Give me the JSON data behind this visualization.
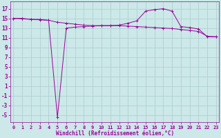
{
  "xlabel": "Windchill (Refroidissement éolien,°C)",
  "x_values": [
    0,
    1,
    2,
    3,
    4,
    5,
    6,
    7,
    8,
    9,
    10,
    11,
    12,
    13,
    14,
    15,
    16,
    17,
    18,
    19,
    20,
    21,
    22,
    23
  ],
  "line1_y": [
    15.0,
    15.0,
    14.8,
    14.8,
    14.6,
    -5.5,
    13.0,
    13.2,
    13.3,
    13.4,
    13.5,
    13.5,
    13.6,
    14.0,
    14.5,
    16.5,
    16.8,
    17.0,
    16.5,
    13.3,
    13.1,
    12.8,
    11.2,
    11.2
  ],
  "line2_y": [
    15.0,
    14.9,
    14.8,
    14.7,
    14.6,
    14.2,
    14.0,
    13.8,
    13.6,
    13.5,
    13.5,
    13.5,
    13.5,
    13.4,
    13.3,
    13.2,
    13.1,
    13.0,
    12.9,
    12.7,
    12.5,
    12.3,
    11.3,
    11.2
  ],
  "line_color": "#990099",
  "bg_color": "#cce8e8",
  "grid_color": "#aacccc",
  "ylim": [
    -6.5,
    18.5
  ],
  "yticks": [
    -5,
    -3,
    -1,
    1,
    3,
    5,
    7,
    9,
    11,
    13,
    15,
    17
  ],
  "xticks": [
    0,
    1,
    2,
    3,
    4,
    5,
    6,
    7,
    8,
    9,
    10,
    11,
    12,
    13,
    14,
    15,
    16,
    17,
    18,
    19,
    20,
    21,
    22,
    23
  ],
  "xlim": [
    -0.3,
    23.3
  ],
  "xlabel_fontsize": 5.5,
  "tick_fontsize": 5.0,
  "ylabel_tick_fontsize": 5.5
}
